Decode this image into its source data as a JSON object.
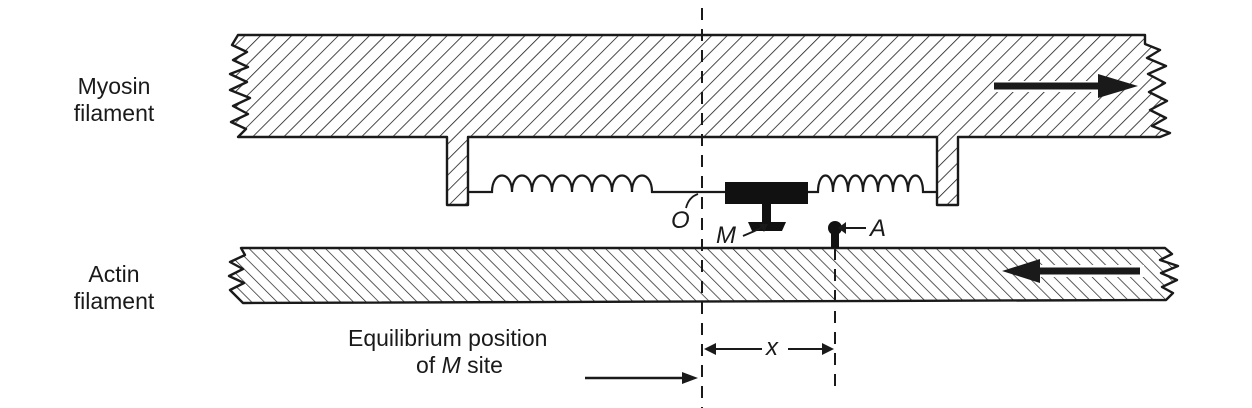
{
  "labels": {
    "myosin_line1": "Myosin",
    "myosin_line2": "filament",
    "actin_line1": "Actin",
    "actin_line2": "filament",
    "equilibrium_line1": "Equilibrium position",
    "equilibrium_line2_prefix": "of",
    "equilibrium_line2_italic": "M",
    "equilibrium_line2_suffix": "site",
    "origin": "O",
    "m_site": "M",
    "a_site": "A",
    "x_distance": "x"
  },
  "colors": {
    "ink": "#1a1a1a",
    "background": "#ffffff"
  }
}
